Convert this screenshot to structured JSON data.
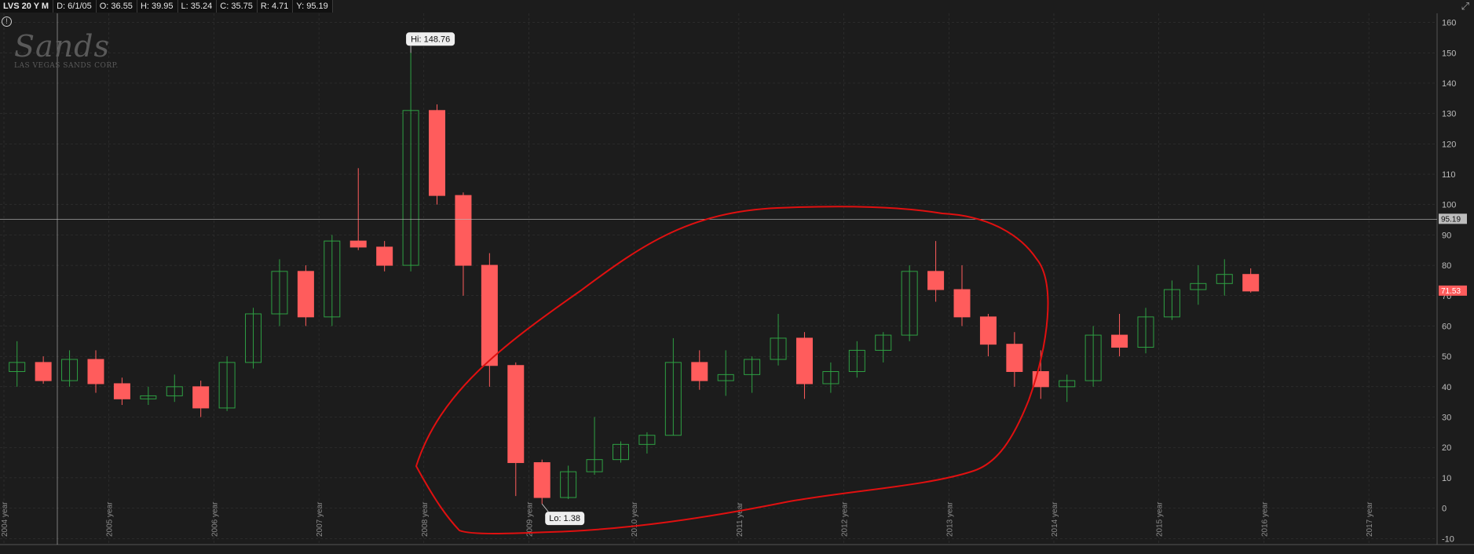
{
  "info_bar": {
    "symbol": "LVS 20 Y M",
    "date": "D: 6/1/05",
    "open": "O: 36.55",
    "high": "H: 39.95",
    "low": "L: 35.24",
    "close": "C: 35.75",
    "range": "R: 4.71",
    "y": "Y: 95.19"
  },
  "watermark": {
    "brand": "Sands",
    "corp": "LAS VEGAS SANDS CORP."
  },
  "colors": {
    "up": "#2ea043",
    "down": "#ff5c5c",
    "grid": "#3a3a3a",
    "annotation": "#e01010",
    "crosshair": "#bdbdbd"
  },
  "chart_data": {
    "type": "candlestick",
    "interval": "monthly",
    "ylim": [
      -12,
      163
    ],
    "yticks": [
      -10,
      0,
      10,
      20,
      30,
      40,
      50,
      60,
      70,
      80,
      90,
      100,
      110,
      120,
      130,
      140,
      150,
      160
    ],
    "xlabels": [
      "2004 year",
      "2005 year",
      "2006 year",
      "2007 year",
      "2008 year",
      "2009 year",
      "2010 year",
      "2011 year",
      "2012 year",
      "2013 year",
      "2014 year",
      "2015 year",
      "2016 year",
      "2017 year"
    ],
    "hi_label": "Hi: 148.76",
    "lo_label": "Lo: 1.38",
    "crosshair_label": "95.19",
    "crosshair_value": 95.19,
    "last_price_label": "71.53",
    "last_price": 71.53,
    "quarterly_ohlc": [
      [
        45,
        55,
        40,
        48
      ],
      [
        48,
        50,
        41,
        42
      ],
      [
        42,
        52,
        40,
        49
      ],
      [
        49,
        52,
        38,
        41
      ],
      [
        41,
        43,
        34,
        36
      ],
      [
        36,
        40,
        34,
        37
      ],
      [
        37,
        44,
        35,
        40
      ],
      [
        40,
        42,
        30,
        33
      ],
      [
        33,
        50,
        32,
        48
      ],
      [
        48,
        66,
        46,
        64
      ],
      [
        64,
        82,
        60,
        78
      ],
      [
        78,
        80,
        60,
        63
      ],
      [
        63,
        90,
        60,
        88
      ],
      [
        88,
        112,
        85,
        86
      ],
      [
        86,
        88,
        78,
        80
      ],
      [
        80,
        150,
        78,
        131
      ],
      [
        131,
        133,
        100,
        103
      ],
      [
        103,
        104,
        70,
        80
      ],
      [
        80,
        84,
        40,
        47
      ],
      [
        47,
        48,
        4,
        15
      ],
      [
        15,
        16,
        1.4,
        3.5
      ],
      [
        3.5,
        14,
        3,
        12
      ],
      [
        12,
        30,
        11,
        16
      ],
      [
        16,
        22,
        15,
        21
      ],
      [
        21,
        25,
        18,
        24
      ],
      [
        24,
        56,
        24,
        48
      ],
      [
        48,
        52,
        39,
        42
      ],
      [
        42,
        52,
        37,
        44
      ],
      [
        44,
        50,
        38,
        49
      ],
      [
        49,
        64,
        47,
        56
      ],
      [
        56,
        58,
        36,
        41
      ],
      [
        41,
        48,
        38,
        45
      ],
      [
        45,
        55,
        43,
        52
      ],
      [
        52,
        58,
        48,
        57
      ],
      [
        57,
        80,
        55,
        78
      ],
      [
        78,
        88,
        68,
        72
      ],
      [
        72,
        80,
        60,
        63
      ],
      [
        63,
        64,
        50,
        54
      ],
      [
        54,
        58,
        40,
        45
      ],
      [
        45,
        52,
        36,
        40
      ],
      [
        40,
        44,
        35,
        42
      ],
      [
        42,
        60,
        40,
        57
      ],
      [
        57,
        64,
        50,
        53
      ],
      [
        53,
        66,
        51,
        63
      ],
      [
        63,
        75,
        62,
        72
      ],
      [
        72,
        80,
        67,
        74
      ],
      [
        74,
        82,
        70,
        77
      ],
      [
        77,
        79,
        71,
        71.53
      ]
    ]
  }
}
